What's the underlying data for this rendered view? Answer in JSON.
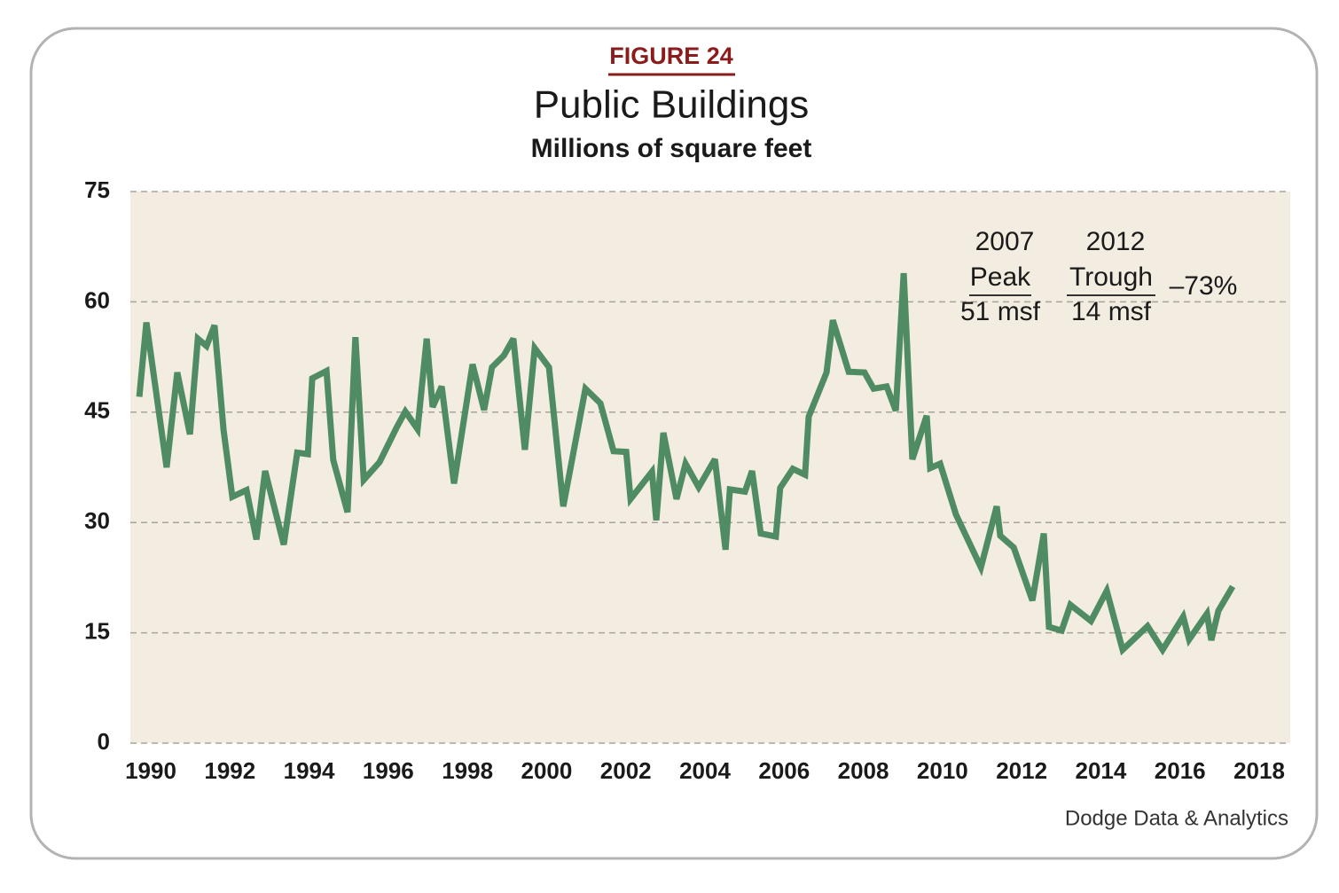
{
  "chart_data": {
    "type": "line",
    "figure_label": "FIGURE 24",
    "title": "Public Buildings",
    "subtitle": "Millions of square feet",
    "source": "Dodge Data & Analytics",
    "color": "#4f8b63",
    "grid": true,
    "x": [
      1989.71,
      1989.89,
      1990.4,
      1990.67,
      1990.99,
      1991.19,
      1991.41,
      1991.61,
      1991.84,
      1992.06,
      1992.42,
      1992.67,
      1992.89,
      1993.36,
      1993.7,
      1993.97,
      1994.08,
      1994.44,
      1994.61,
      1994.97,
      1995.17,
      1995.38,
      1995.78,
      1996.21,
      1996.43,
      1996.74,
      1996.97,
      1997.12,
      1997.35,
      1997.66,
      1998.13,
      1998.42,
      1998.62,
      1998.92,
      1999.16,
      1999.45,
      1999.7,
      2000.06,
      2000.42,
      2000.98,
      2001.36,
      2001.69,
      2002.01,
      2002.12,
      2002.66,
      2002.77,
      2002.95,
      2003.28,
      2003.51,
      2003.84,
      2004.25,
      2004.52,
      2004.63,
      2005.01,
      2005.19,
      2005.41,
      2005.79,
      2005.9,
      2006.22,
      2006.53,
      2006.62,
      2007.07,
      2007.23,
      2007.63,
      2008.03,
      2008.26,
      2008.59,
      2008.82,
      2009.02,
      2009.24,
      2009.6,
      2009.69,
      2009.94,
      2010.34,
      2010.97,
      2011.37,
      2011.46,
      2011.8,
      2012.27,
      2012.56,
      2012.69,
      2013.01,
      2013.23,
      2013.75,
      2014.15,
      2014.55,
      2015.18,
      2015.56,
      2016.08,
      2016.23,
      2016.68,
      2016.79,
      2016.97,
      2017.33
    ],
    "values": [
      47.1,
      57.2,
      37.5,
      50.4,
      42,
      55,
      54,
      56.8,
      42.6,
      33.5,
      34.4,
      27.7,
      37,
      27,
      39.5,
      39.3,
      49.6,
      50.6,
      38.5,
      31.4,
      55.2,
      35.8,
      38.2,
      42.9,
      45.1,
      42.7,
      55,
      45.7,
      48.5,
      35.3,
      51.5,
      45.3,
      51.1,
      52.7,
      55,
      39.9,
      53.7,
      51.1,
      32.2,
      48.2,
      46.2,
      39.7,
      39.6,
      33.2,
      36.9,
      30.3,
      42.2,
      33.2,
      38,
      34.8,
      38.6,
      26.3,
      34.5,
      34.2,
      37,
      28.5,
      28.1,
      34.7,
      37.3,
      36.5,
      44.4,
      50.4,
      57.5,
      50.5,
      50.4,
      48.2,
      48.5,
      45.2,
      63.9,
      38.6,
      44.5,
      37.4,
      38,
      31.1,
      23.9,
      32.2,
      28.2,
      26.6,
      19.4,
      28.5,
      15.8,
      15.3,
      18.8,
      16.6,
      20.7,
      12.7,
      15.9,
      12.7,
      17.2,
      14.1,
      17.6,
      14,
      18,
      21.3
    ],
    "xlim": [
      1990,
      2018
    ],
    "xticks": [
      1990,
      1992,
      1994,
      1996,
      1998,
      2000,
      2002,
      2004,
      2006,
      2008,
      2010,
      2012,
      2014,
      2016,
      2018
    ],
    "ylim": [
      0,
      75
    ],
    "yticks": [
      0,
      15,
      30,
      45,
      60,
      75
    ],
    "annotations": [
      {
        "year": "2007",
        "label": "Peak",
        "amount": "51 msf"
      },
      {
        "year": "2012",
        "label": "Trough",
        "amount": "14 msf"
      }
    ],
    "change_label": "–73%"
  }
}
